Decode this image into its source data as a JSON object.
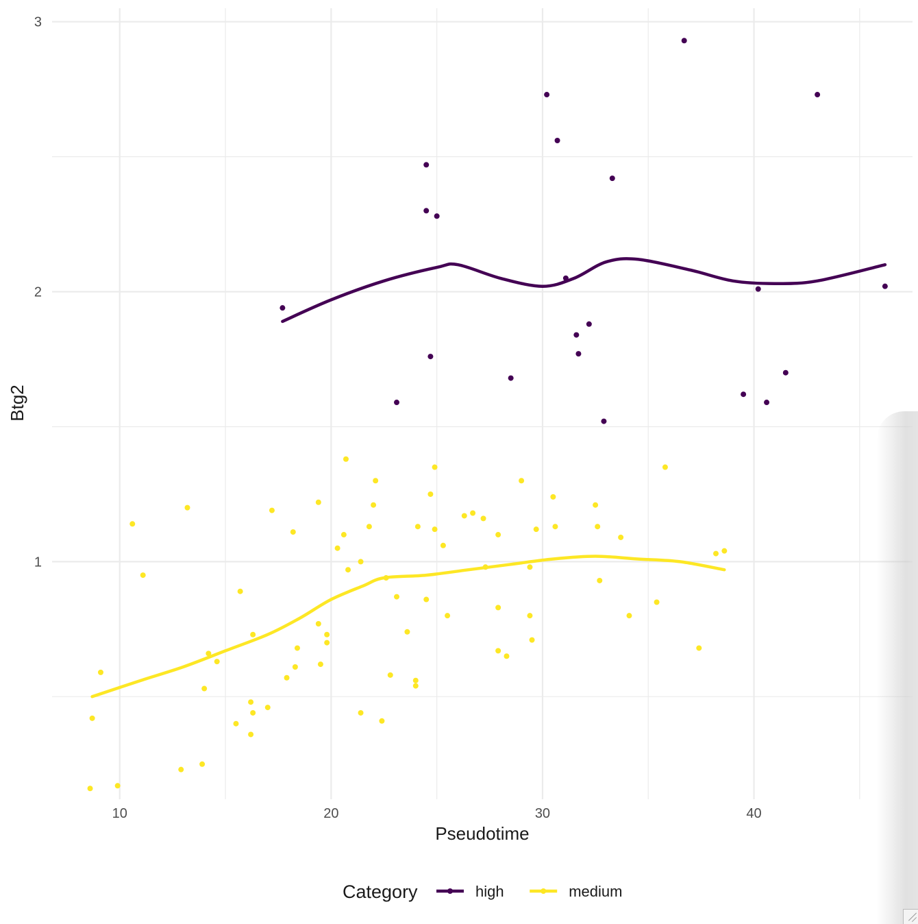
{
  "chart_data": {
    "type": "scatter",
    "xlabel": "Pseudotime",
    "ylabel": "Btg2",
    "xlim": [
      6.8,
      47.5
    ],
    "ylim": [
      0.12,
      3.05
    ],
    "x_ticks": [
      10,
      20,
      30,
      40
    ],
    "y_ticks": [
      1,
      2,
      3
    ],
    "grid": true,
    "legend": {
      "title": "Category",
      "position": "bottom"
    },
    "series": [
      {
        "name": "high",
        "color": "#440154",
        "points": [
          [
            17.7,
            1.94
          ],
          [
            23.1,
            1.59
          ],
          [
            24.5,
            2.47
          ],
          [
            24.5,
            2.3
          ],
          [
            24.7,
            1.76
          ],
          [
            25.0,
            2.28
          ],
          [
            28.5,
            1.68
          ],
          [
            30.2,
            2.73
          ],
          [
            30.7,
            2.56
          ],
          [
            31.1,
            2.05
          ],
          [
            31.6,
            1.84
          ],
          [
            31.7,
            1.77
          ],
          [
            32.2,
            1.88
          ],
          [
            32.9,
            1.52
          ],
          [
            33.3,
            2.42
          ],
          [
            36.7,
            2.93
          ],
          [
            40.2,
            2.01
          ],
          [
            39.5,
            1.62
          ],
          [
            40.6,
            1.59
          ],
          [
            41.5,
            1.7
          ],
          [
            43.0,
            2.73
          ],
          [
            46.2,
            2.02
          ]
        ],
        "trend": [
          [
            17.7,
            1.89
          ],
          [
            20.0,
            1.97
          ],
          [
            22.5,
            2.04
          ],
          [
            25.0,
            2.09
          ],
          [
            26.0,
            2.1
          ],
          [
            28.0,
            2.05
          ],
          [
            30.0,
            2.02
          ],
          [
            31.5,
            2.05
          ],
          [
            33.0,
            2.11
          ],
          [
            34.5,
            2.12
          ],
          [
            37.0,
            2.08
          ],
          [
            39.0,
            2.04
          ],
          [
            41.0,
            2.03
          ],
          [
            43.0,
            2.04
          ],
          [
            46.2,
            2.1
          ]
        ]
      },
      {
        "name": "medium",
        "color": "#fde725",
        "points": [
          [
            8.6,
            0.16
          ],
          [
            8.7,
            0.42
          ],
          [
            9.1,
            0.59
          ],
          [
            9.9,
            0.17
          ],
          [
            10.6,
            1.14
          ],
          [
            11.1,
            0.95
          ],
          [
            12.9,
            0.23
          ],
          [
            13.2,
            1.2
          ],
          [
            13.9,
            0.25
          ],
          [
            14.0,
            0.53
          ],
          [
            14.2,
            0.66
          ],
          [
            14.6,
            0.63
          ],
          [
            15.5,
            0.4
          ],
          [
            15.7,
            0.89
          ],
          [
            16.2,
            0.48
          ],
          [
            16.2,
            0.36
          ],
          [
            16.3,
            0.73
          ],
          [
            16.3,
            0.44
          ],
          [
            17.0,
            0.46
          ],
          [
            17.2,
            1.19
          ],
          [
            17.9,
            0.57
          ],
          [
            18.2,
            1.11
          ],
          [
            18.3,
            0.61
          ],
          [
            18.4,
            0.68
          ],
          [
            19.4,
            0.77
          ],
          [
            19.4,
            1.22
          ],
          [
            19.5,
            0.62
          ],
          [
            19.8,
            0.73
          ],
          [
            19.8,
            0.7
          ],
          [
            20.3,
            1.05
          ],
          [
            20.6,
            1.1
          ],
          [
            20.7,
            1.38
          ],
          [
            20.8,
            0.97
          ],
          [
            21.4,
            1.0
          ],
          [
            21.4,
            0.44
          ],
          [
            21.8,
            1.13
          ],
          [
            22.0,
            1.21
          ],
          [
            22.1,
            1.3
          ],
          [
            22.4,
            0.41
          ],
          [
            22.6,
            0.94
          ],
          [
            22.8,
            0.58
          ],
          [
            23.1,
            0.87
          ],
          [
            23.6,
            0.74
          ],
          [
            24.0,
            0.56
          ],
          [
            24.0,
            0.54
          ],
          [
            24.1,
            1.13
          ],
          [
            24.5,
            0.86
          ],
          [
            24.7,
            1.25
          ],
          [
            24.9,
            1.12
          ],
          [
            24.9,
            1.35
          ],
          [
            25.3,
            1.06
          ],
          [
            25.5,
            0.8
          ],
          [
            26.3,
            1.17
          ],
          [
            26.7,
            1.18
          ],
          [
            27.2,
            1.16
          ],
          [
            27.3,
            0.98
          ],
          [
            27.9,
            1.1
          ],
          [
            27.9,
            0.83
          ],
          [
            27.9,
            0.67
          ],
          [
            28.3,
            0.65
          ],
          [
            29.0,
            1.3
          ],
          [
            29.4,
            0.8
          ],
          [
            29.5,
            0.71
          ],
          [
            29.4,
            0.98
          ],
          [
            29.7,
            1.12
          ],
          [
            30.5,
            1.24
          ],
          [
            30.6,
            1.13
          ],
          [
            32.5,
            1.21
          ],
          [
            32.6,
            1.13
          ],
          [
            32.7,
            0.93
          ],
          [
            33.7,
            1.09
          ],
          [
            34.1,
            0.8
          ],
          [
            35.4,
            0.85
          ],
          [
            35.8,
            1.35
          ],
          [
            37.4,
            0.68
          ],
          [
            38.2,
            1.03
          ],
          [
            38.6,
            1.04
          ]
        ],
        "trend": [
          [
            8.7,
            0.5
          ],
          [
            11.0,
            0.56
          ],
          [
            13.0,
            0.61
          ],
          [
            15.0,
            0.67
          ],
          [
            17.0,
            0.73
          ],
          [
            18.5,
            0.79
          ],
          [
            20.0,
            0.86
          ],
          [
            21.5,
            0.91
          ],
          [
            22.5,
            0.94
          ],
          [
            24.5,
            0.95
          ],
          [
            26.5,
            0.97
          ],
          [
            28.5,
            0.99
          ],
          [
            30.5,
            1.01
          ],
          [
            32.5,
            1.02
          ],
          [
            34.5,
            1.01
          ],
          [
            36.5,
            1.0
          ],
          [
            38.6,
            0.97
          ]
        ]
      }
    ]
  }
}
